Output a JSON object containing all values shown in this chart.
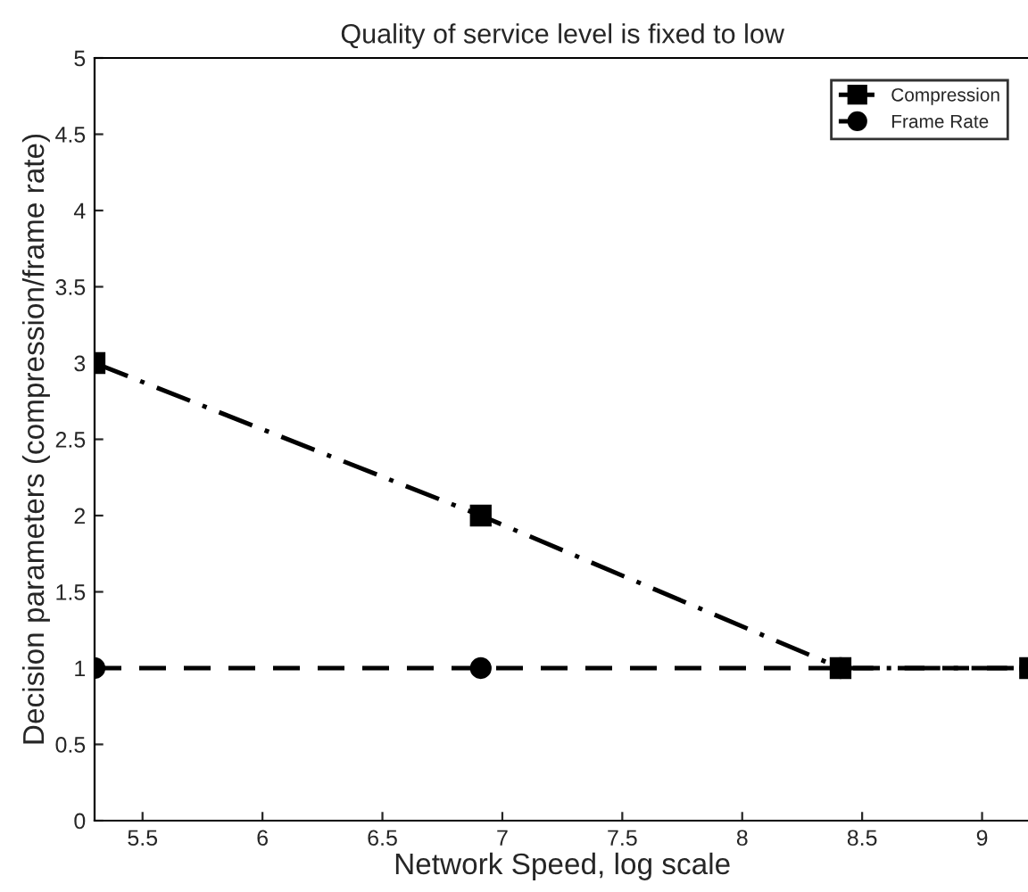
{
  "chart_data": {
    "type": "line",
    "title": "Quality of service level is fixed to low",
    "xlabel": "Network Speed, log scale",
    "ylabel": "Decision parameters (compression/frame rate)",
    "x": [
      5.3,
      6.91,
      8.41,
      9.2
    ],
    "series": [
      {
        "name": "Compression",
        "color": "#000000",
        "values": [
          3,
          2,
          1,
          1
        ],
        "marker": "square",
        "line_style": "dashdot"
      },
      {
        "name": "Frame Rate",
        "color": "#000000",
        "values": [
          1,
          1,
          1,
          1
        ],
        "marker": "circle",
        "line_style": "dashed"
      }
    ],
    "xlim": [
      5.3,
      9.2
    ],
    "xticks": [
      5.5,
      6,
      6.5,
      7,
      7.5,
      8,
      8.5,
      9
    ],
    "ylim": [
      0,
      5
    ],
    "yticks": [
      0,
      0.5,
      1,
      1.5,
      2,
      2.5,
      3,
      3.5,
      4,
      4.5,
      5
    ],
    "grid": false,
    "legend": "top right"
  }
}
